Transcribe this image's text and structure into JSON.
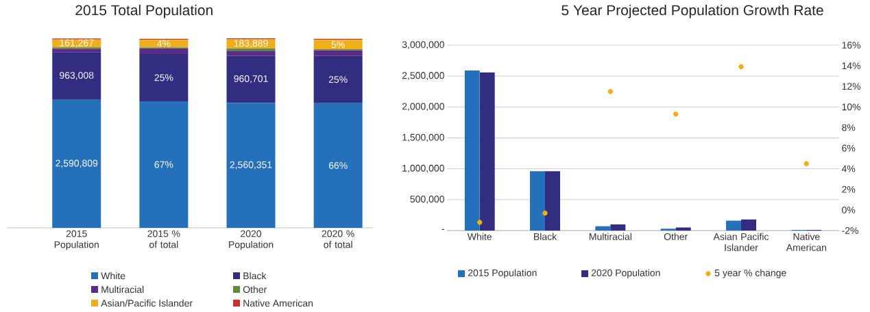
{
  "chart_data": [
    {
      "type": "bar",
      "title": "2015 Total Population",
      "stacked": true,
      "legend": "bottom",
      "categories": [
        "2015 Population",
        "2015 % of total",
        "2020 Population",
        "2020 % of total"
      ],
      "series": [
        {
          "name": "White",
          "color": "#2470b9",
          "values": [
            67.8,
            67,
            66.2,
            66
          ],
          "value_labels": [
            null,
            "67%",
            null,
            "66%"
          ]
        },
        {
          "name": "Black",
          "color": "#332d82",
          "values": [
            25.2,
            25,
            24.9,
            25
          ],
          "value_labels": [
            null,
            "25%",
            null,
            "25%"
          ]
        },
        {
          "name": "Multiracial",
          "color": "#5b2c86",
          "values": [
            1.8,
            3,
            2.6,
            3
          ]
        },
        {
          "name": "Other",
          "color": "#5f8c3a",
          "values": [
            0.7,
            0.5,
            1.3,
            0.5
          ]
        },
        {
          "name": "Asian/Pacific Islander",
          "color": "#f0ad1c",
          "values": [
            4.2,
            4,
            4.8,
            5
          ],
          "value_labels": [
            null,
            "4%",
            null,
            "5%"
          ]
        },
        {
          "name": "Native American",
          "color": "#c8302f",
          "values": [
            0.5,
            0.5,
            0.5,
            0.5
          ]
        }
      ],
      "annotations": [
        "2,590,809",
        "963,008",
        "161,267",
        "2,560,351",
        "960,701",
        "183,889"
      ]
    },
    {
      "type": "bar",
      "title": "5 Year Projected Population Growth Rate",
      "legend": "bottom",
      "grid": "y",
      "categories": [
        "White",
        "Black",
        "Multiracial",
        "Other",
        "Asian Pacific Islander",
        "Native American"
      ],
      "ylim": [
        0,
        3000000
      ],
      "yticks": [
        {
          "value": 0,
          "label": "-"
        },
        {
          "value": 500000,
          "label": "500,000"
        },
        {
          "value": 1000000,
          "label": "1,000,000"
        },
        {
          "value": 1500000,
          "label": "1,500,000"
        },
        {
          "value": 2000000,
          "label": "2,000,000"
        },
        {
          "value": 2500000,
          "label": "2,500,000"
        },
        {
          "value": 3000000,
          "label": "3,000,000"
        }
      ],
      "y2lim": [
        -2,
        16
      ],
      "y2ticks": [
        {
          "value": -2,
          "label": "-2%"
        },
        {
          "value": 0,
          "label": "0%"
        },
        {
          "value": 2,
          "label": "2%"
        },
        {
          "value": 4,
          "label": "4%"
        },
        {
          "value": 6,
          "label": "6%"
        },
        {
          "value": 8,
          "label": "8%"
        },
        {
          "value": 10,
          "label": "10%"
        },
        {
          "value": 12,
          "label": "12%"
        },
        {
          "value": 14,
          "label": "14%"
        },
        {
          "value": 16,
          "label": "16%"
        }
      ],
      "series": [
        {
          "name": "2015 Population",
          "color": "#2470b9",
          "values": [
            2590000,
            960000,
            70000,
            30000,
            160000,
            10000
          ]
        },
        {
          "name": "2020 Population",
          "color": "#332d82",
          "values": [
            2560000,
            960000,
            100000,
            50000,
            180000,
            10000
          ]
        },
        {
          "name": "5 year % change",
          "type": "scatter",
          "axis": "y2",
          "marker": "circle",
          "color": "#f0ad1c",
          "values": [
            -1.2,
            -0.3,
            11.5,
            9.3,
            13.9,
            4.5
          ]
        }
      ]
    }
  ]
}
